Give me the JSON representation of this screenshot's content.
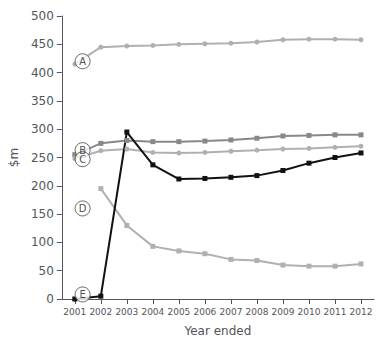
{
  "chart_data": {
    "type": "line",
    "xlabel": "Year ended",
    "ylabel": "$m",
    "x": [
      2001,
      2002,
      2003,
      2004,
      2005,
      2006,
      2007,
      2008,
      2009,
      2010,
      2011,
      2012
    ],
    "series": [
      {
        "name": "A",
        "color": "#b0b0b0",
        "marker": "circle",
        "values": [
          415,
          445,
          447,
          448,
          450,
          451,
          452,
          454,
          458,
          459,
          459,
          458
        ]
      },
      {
        "name": "B",
        "color": "#888888",
        "marker": "square",
        "values": [
          255,
          275,
          280,
          278,
          278,
          279,
          281,
          284,
          288,
          289,
          290,
          290
        ]
      },
      {
        "name": "C",
        "color": "#b0b0b0",
        "marker": "circle",
        "values": [
          248,
          262,
          265,
          259,
          258,
          259,
          261,
          263,
          265,
          266,
          268,
          270
        ]
      },
      {
        "name": "D",
        "color": "#b0b0b0",
        "marker": "square",
        "values": [
          null,
          195,
          130,
          93,
          85,
          80,
          70,
          68,
          60,
          58,
          58,
          62
        ]
      },
      {
        "name": "E",
        "color": "#111111",
        "marker": "square",
        "values": [
          0,
          5,
          295,
          237,
          212,
          213,
          215,
          218,
          227,
          240,
          250,
          258
        ]
      }
    ],
    "annotations": [
      {
        "text": "A",
        "x": 2001.3,
        "y": 420
      },
      {
        "text": "B",
        "x": 2001.3,
        "y": 263
      },
      {
        "text": "C",
        "x": 2001.3,
        "y": 247
      },
      {
        "text": "D",
        "x": 2001.3,
        "y": 160
      },
      {
        "text": "E",
        "x": 2001.3,
        "y": 8
      }
    ],
    "xlim": [
      2000.5,
      2012.5
    ],
    "xticks": [
      2001,
      2002,
      2003,
      2004,
      2005,
      2006,
      2007,
      2008,
      2009,
      2010,
      2011,
      2012
    ],
    "ylim": [
      0,
      500
    ],
    "yticks": [
      0,
      50,
      100,
      150,
      200,
      250,
      300,
      350,
      400,
      450,
      500
    ],
    "grid": false
  }
}
